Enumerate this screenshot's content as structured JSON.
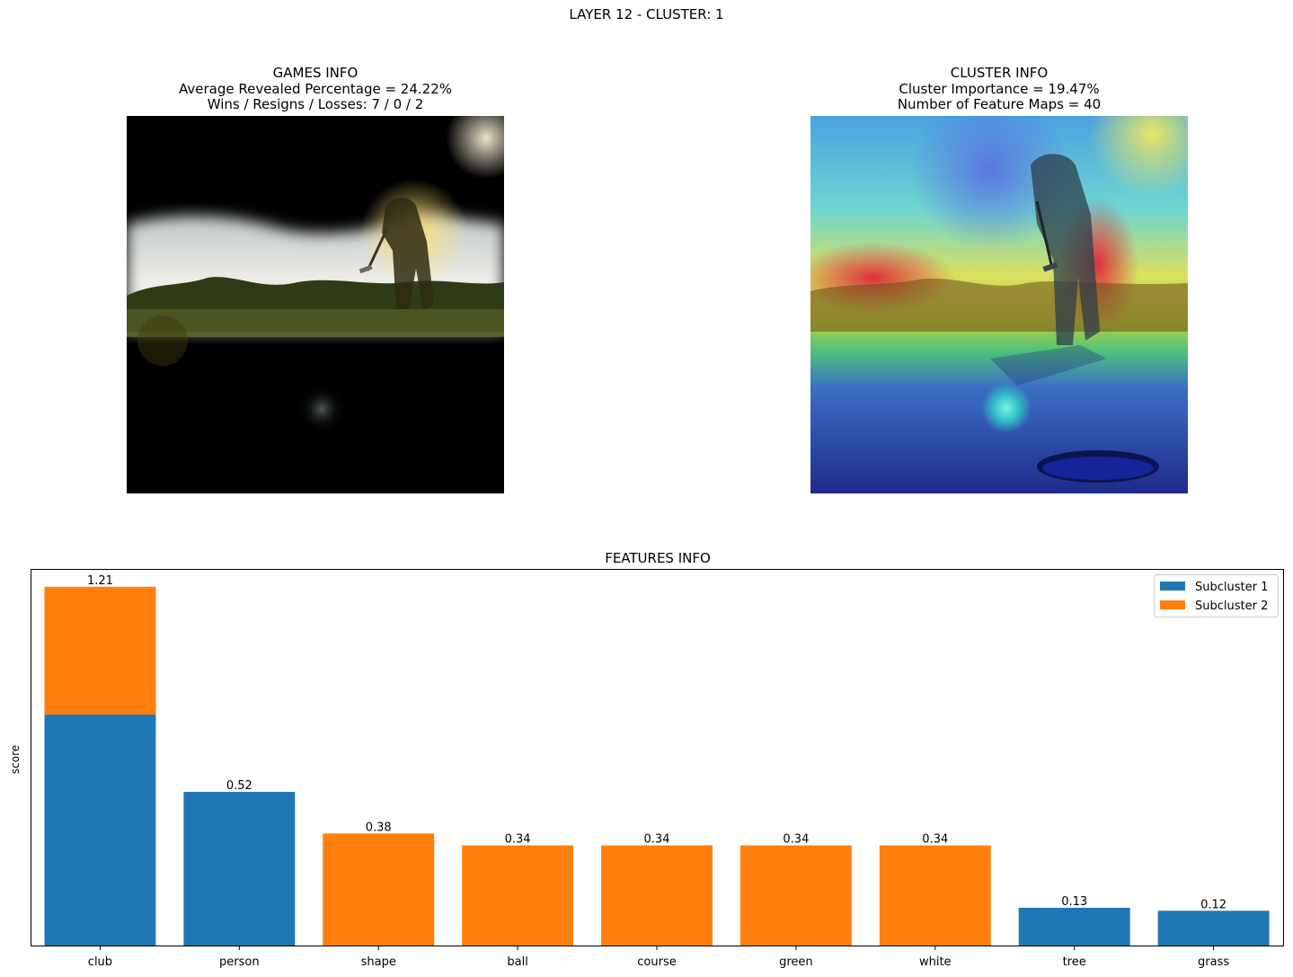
{
  "figure": {
    "title": "LAYER 12 - CLUSTER: 1"
  },
  "games_panel": {
    "lines": [
      "GAMES INFO",
      "Average Revealed Percentage = 24.22%",
      "Wins / Resigns / Losses: 7 / 0 / 2"
    ],
    "image": "masked-golf-photo"
  },
  "cluster_panel": {
    "lines": [
      "CLUSTER INFO",
      "Cluster Importance = 19.47%",
      "Number of Feature Maps = 40"
    ],
    "image": "golf-photo-heatmap-overlay"
  },
  "chart_data": {
    "type": "bar",
    "stacked": true,
    "title": "FEATURES INFO",
    "xlabel": "",
    "ylabel": "score",
    "categories": [
      "club",
      "person",
      "shape",
      "ball",
      "course",
      "green",
      "white",
      "tree",
      "grass"
    ],
    "series": [
      {
        "name": "Subcluster 1",
        "color": "#1f77b4",
        "values": [
          0.78,
          0.52,
          0,
          0,
          0,
          0,
          0,
          0.13,
          0.12
        ]
      },
      {
        "name": "Subcluster 2",
        "color": "#ff7f0e",
        "values": [
          0.43,
          0,
          0.38,
          0.34,
          0.34,
          0.34,
          0.34,
          0,
          0
        ]
      }
    ],
    "data_labels": [
      "1.21",
      "0.52",
      "0.38",
      "0.34",
      "0.34",
      "0.34",
      "0.34",
      "0.13",
      "0.12"
    ],
    "ylim": [
      0,
      1.27
    ],
    "legend_position": "top-right",
    "grid": false,
    "y_ticks_visible": false
  }
}
